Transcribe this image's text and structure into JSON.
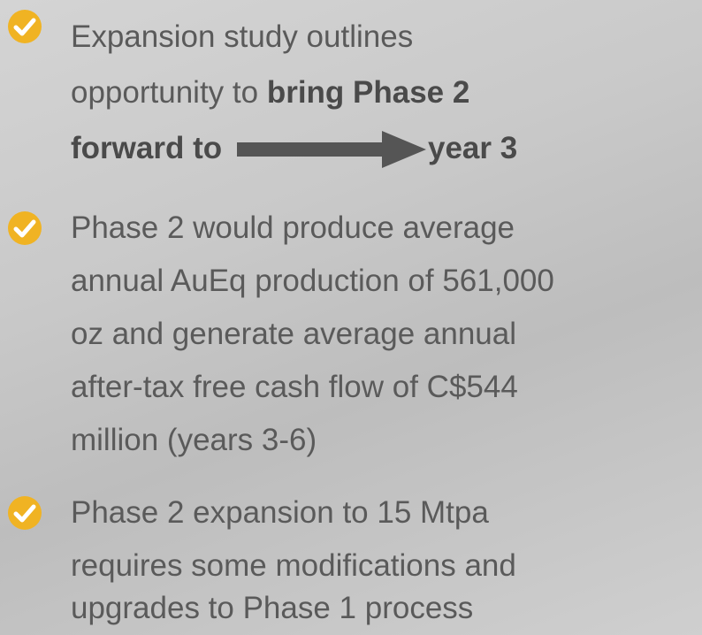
{
  "bullets": [
    {
      "lines": [
        [
          "Expansion study outlines"
        ],
        [
          "opportunity to ",
          "bring Phase 2"
        ],
        [
          "forward to",
          "year 3"
        ]
      ]
    },
    {
      "lines": [
        [
          "Phase 2 would produce average"
        ],
        [
          "annual AuEq production of 561,000"
        ],
        [
          "oz and generate average annual"
        ],
        [
          "after-tax free cash flow of C$544"
        ],
        [
          "million (years 3-6)"
        ]
      ]
    },
    {
      "lines": [
        [
          "Phase 2 expansion to 15 Mtpa"
        ],
        [
          "requires some modifications and"
        ],
        [
          "upgrades to Phase 1 process"
        ]
      ]
    }
  ]
}
